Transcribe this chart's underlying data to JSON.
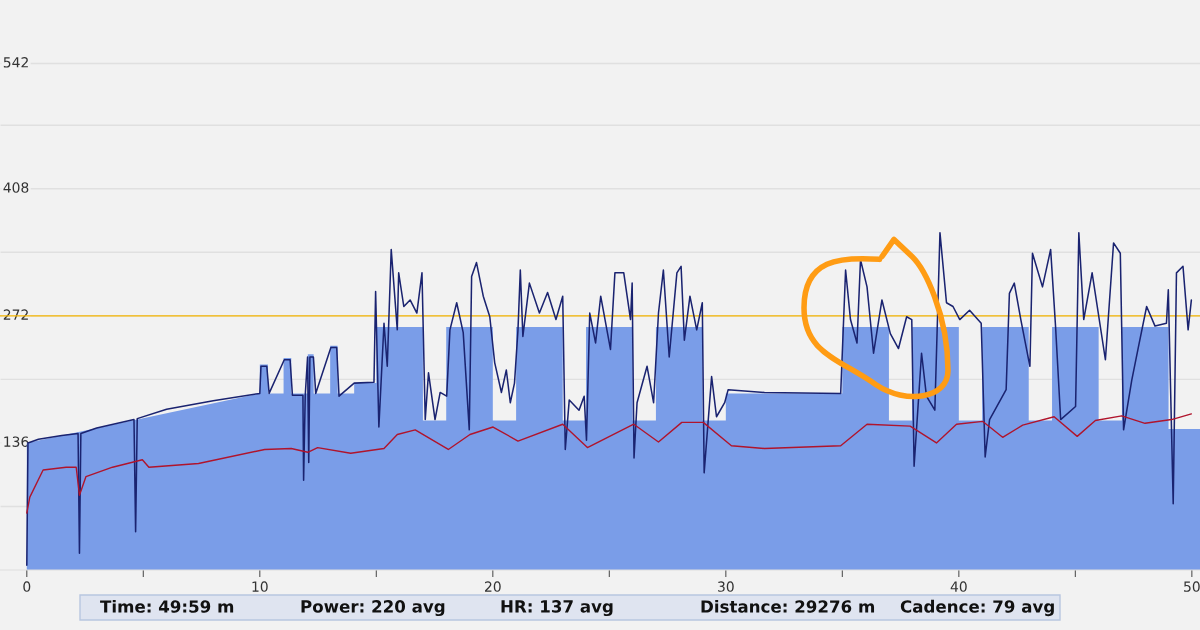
{
  "chart_data": {
    "type": "line",
    "xlim": [
      -1.15,
      50.35
    ],
    "ylim": [
      0,
      610
    ],
    "xticks": [
      0,
      {
        "value": 5,
        "label": null
      },
      10,
      {
        "value": 15,
        "label": null
      },
      20,
      {
        "value": 25,
        "label": null
      },
      30,
      {
        "value": 35,
        "label": null
      },
      40,
      {
        "value": 45,
        "label": null
      },
      50
    ],
    "yticks": [
      {
        "value": 68,
        "label": null
      },
      136,
      {
        "value": 204,
        "label": null
      },
      272,
      {
        "value": 340,
        "label": null
      },
      408,
      {
        "value": 476,
        "label": null
      },
      542
    ],
    "grid": "y",
    "ref_lines": [
      {
        "axis": "y",
        "value": 272,
        "label": null,
        "color": "#f5b500"
      }
    ],
    "annotations": [
      "Time: 49:59 m",
      "Power: 220 avg",
      "HR: 137 avg",
      "Distance: 29276 m",
      "Cadence: 79 avg"
    ],
    "series": [
      {
        "type": "area",
        "color": "#7a9de8",
        "x": [
          0,
          0,
          10,
          10,
          10.35,
          10.35,
          11.02,
          11.02,
          11.35,
          11.35,
          12.06,
          12.06,
          12.31,
          12.31,
          13.02,
          13.02,
          13.34,
          13.34,
          14.05,
          14.05,
          15,
          15,
          17,
          17,
          18,
          18,
          20,
          20,
          21,
          21,
          23,
          23,
          24,
          24,
          26,
          26,
          27,
          27,
          29,
          29,
          30,
          30,
          35,
          35,
          37,
          37,
          38,
          38,
          40,
          40,
          41,
          41,
          43,
          43,
          44,
          44,
          46,
          46,
          47,
          47,
          49,
          49,
          50.35
        ],
        "values": [
          0,
          136,
          189,
          220,
          220,
          189,
          189,
          227,
          227,
          189,
          189,
          231,
          231,
          189,
          189,
          240,
          240,
          189,
          189,
          200,
          200,
          260,
          260,
          160,
          160,
          260,
          260,
          160,
          160,
          260,
          260,
          160,
          160,
          260,
          260,
          160,
          160,
          260,
          260,
          160,
          160,
          189,
          189,
          260,
          260,
          160,
          160,
          260,
          260,
          160,
          160,
          260,
          260,
          160,
          160,
          260,
          260,
          160,
          160,
          260,
          260,
          151,
          151
        ]
      },
      {
        "color": "#1a2370",
        "x": [
          0,
          0.05,
          0.5,
          1.5,
          2.2,
          2.26,
          2.32,
          3,
          4.6,
          4.67,
          4.74,
          6,
          8,
          10,
          10.05,
          10.3,
          10.4,
          11.05,
          11.3,
          11.4,
          11.85,
          11.88,
          11.95,
          12.05,
          12.1,
          12.15,
          12.3,
          12.4,
          13.05,
          13.3,
          13.4,
          14.05,
          14.9,
          14.97,
          15.11,
          15.33,
          15.47,
          15.64,
          15.9,
          15.96,
          16.18,
          16.45,
          16.74,
          16.96,
          17.1,
          17.24,
          17.52,
          17.74,
          18.02,
          18.16,
          18.45,
          18.73,
          18.99,
          19.09,
          19.3,
          19.59,
          19.87,
          20.08,
          20.37,
          20.58,
          20.75,
          20.93,
          21.08,
          21.18,
          21.29,
          21.57,
          22.0,
          22.35,
          22.71,
          23.0,
          23.11,
          23.28,
          23.7,
          23.92,
          24.02,
          24.16,
          24.41,
          24.63,
          25.05,
          25.24,
          25.62,
          25.91,
          25.98,
          26.06,
          26.19,
          26.62,
          26.9,
          27.11,
          27.32,
          27.57,
          27.9,
          28.08,
          28.22,
          28.46,
          28.75,
          28.99,
          29.07,
          29.39,
          29.6,
          29.95,
          30.1,
          31.66,
          34.93,
          35.14,
          35.35,
          35.63,
          35.78,
          36.06,
          36.34,
          36.7,
          37.06,
          37.41,
          37.76,
          37.98,
          38.08,
          38.4,
          38.61,
          38.97,
          39.19,
          39.47,
          39.75,
          40.04,
          40.46,
          40.96,
          41.13,
          41.32,
          42.03,
          42.17,
          42.38,
          42.66,
          43.05,
          43.16,
          43.59,
          43.94,
          44.15,
          44.37,
          45.01,
          45.15,
          45.36,
          45.72,
          46.29,
          46.64,
          46.93,
          47.07,
          47.42,
          47.71,
          48.06,
          48.42,
          48.91,
          48.99,
          49.2,
          49.34,
          49.62,
          49.84,
          49.98
        ],
        "values": [
          5,
          136,
          140,
          144,
          146,
          18,
          146,
          152,
          161,
          41,
          162,
          172,
          181,
          189,
          218,
          218,
          189,
          225,
          225,
          187,
          187,
          96,
          187,
          228,
          115,
          228,
          228,
          189,
          238,
          238,
          186,
          200,
          201,
          298,
          153,
          264,
          218,
          343,
          257,
          318,
          282,
          289,
          275,
          318,
          161,
          211,
          161,
          190,
          186,
          257,
          286,
          254,
          150,
          314,
          329,
          293,
          271,
          222,
          190,
          214,
          179,
          200,
          257,
          321,
          250,
          307,
          275,
          297,
          268,
          293,
          129,
          182,
          171,
          186,
          139,
          275,
          243,
          293,
          236,
          318,
          318,
          268,
          307,
          120,
          179,
          218,
          179,
          275,
          321,
          228,
          318,
          325,
          246,
          293,
          257,
          286,
          104,
          207,
          164,
          179,
          193,
          190,
          189,
          321,
          268,
          243,
          332,
          303,
          232,
          289,
          253,
          237,
          271,
          268,
          111,
          232,
          186,
          171,
          361,
          286,
          282,
          268,
          278,
          264,
          121,
          161,
          193,
          296,
          307,
          268,
          218,
          339,
          303,
          343,
          261,
          161,
          175,
          361,
          268,
          318,
          225,
          350,
          339,
          150,
          203,
          239,
          282,
          261,
          264,
          300,
          71,
          318,
          325,
          257,
          289
        ]
      },
      {
        "color": "#b0142c",
        "x": [
          0,
          0.13,
          0.7,
          1.69,
          2.12,
          2.26,
          2.54,
          3.68,
          4.96,
          5.24,
          7.37,
          10.21,
          11.35,
          12.06,
          12.48,
          13.9,
          15.33,
          15.9,
          16.67,
          18.09,
          19.02,
          20.01,
          21.08,
          23.0,
          24.06,
          26.05,
          27.11,
          28.11,
          29.03,
          30.24,
          31.66,
          34.93,
          36.06,
          37.91,
          39.04,
          39.9,
          41.03,
          41.88,
          42.74,
          44.09,
          45.08,
          45.86,
          46.99,
          47.99,
          49.13,
          49.98
        ],
        "values": [
          61,
          78,
          107,
          110,
          110,
          80,
          100,
          110,
          118,
          110,
          114,
          129,
          130,
          126,
          131,
          125,
          130,
          145,
          150,
          129,
          145,
          153,
          138,
          156,
          131,
          156,
          137,
          158,
          158,
          133,
          130,
          133,
          156,
          154,
          136,
          156,
          159,
          142,
          155,
          164,
          143,
          160,
          165,
          157,
          161,
          167
        ]
      }
    ]
  }
}
